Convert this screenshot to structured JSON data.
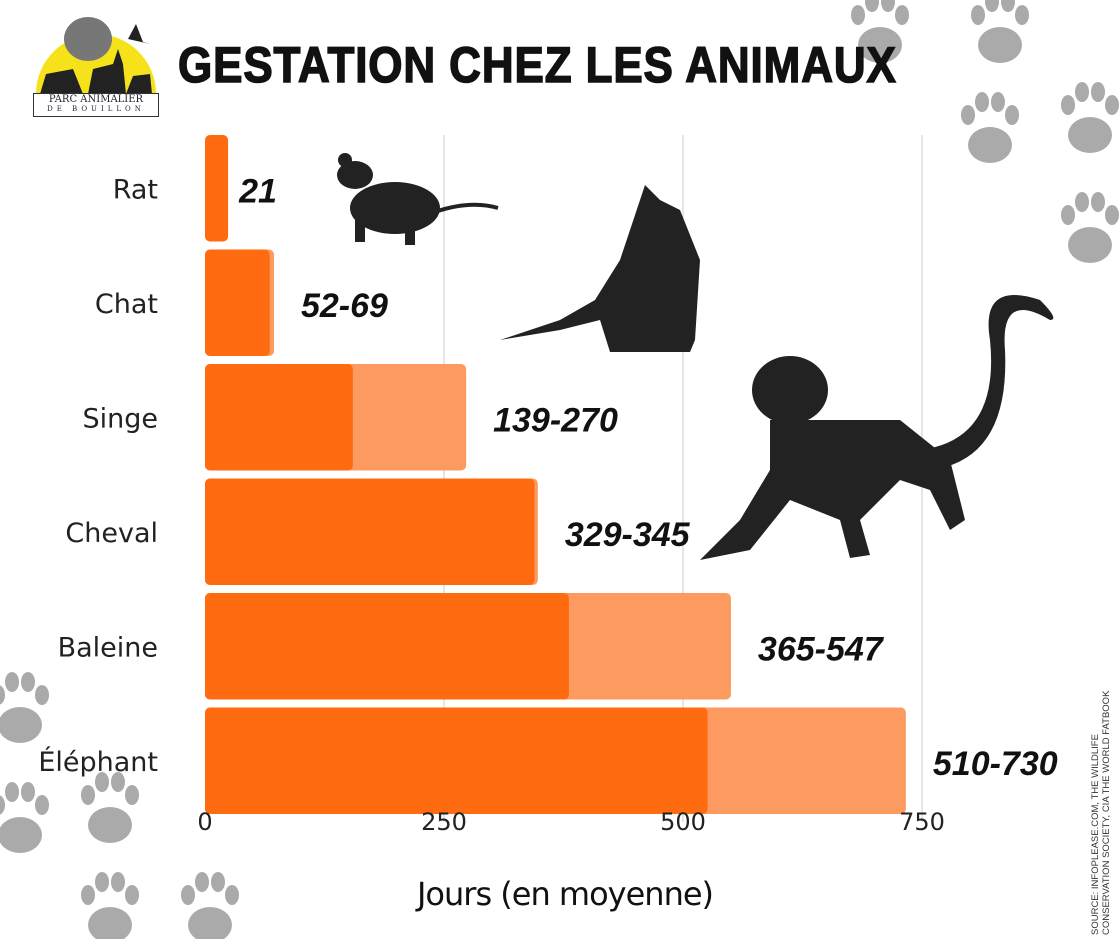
{
  "logo": {
    "line1": "PARC ANIMALIER",
    "line2": "DE BOUILLON"
  },
  "source": "SOURCE: INFOPLEASE.COM, THE WILDLIFE CONSERVATION SOCIETY, CIA THE WORLD FATBOOK",
  "chart_data": {
    "type": "bar",
    "orientation": "horizontal",
    "title": "GESTATION CHEZ LES ANIMAUX",
    "xlabel": "Jours (en moyenne)",
    "ylabel": "",
    "xlim": [
      0,
      750
    ],
    "xticks": [
      0,
      250,
      500,
      750
    ],
    "grid": true,
    "categories": [
      "Rat",
      "Chat",
      "Singe",
      "Cheval",
      "Baleine",
      "Éléphant"
    ],
    "series": [
      {
        "name": "min",
        "color": "#ff6b10",
        "values": [
          21,
          52,
          139,
          329,
          365,
          510
        ]
      },
      {
        "name": "max",
        "color": "#fd9a60",
        "values": [
          21,
          69,
          270,
          345,
          547,
          730
        ]
      }
    ],
    "labels": [
      "21",
      "52-69",
      "139-270",
      "329-345",
      "365-547",
      "510-730"
    ]
  }
}
